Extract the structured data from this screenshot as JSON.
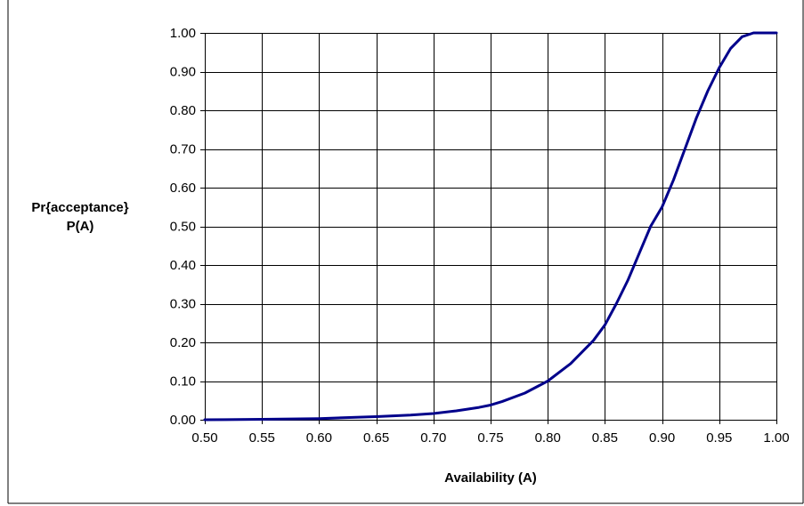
{
  "chart_data": {
    "type": "line",
    "title": "",
    "xlabel": "Availability (A)",
    "ylabel_lines": [
      "Pr{acceptance}",
      "P(A)"
    ],
    "xlim": [
      0.5,
      1.0
    ],
    "ylim": [
      0.0,
      1.0
    ],
    "x_ticks": [
      "0.50",
      "0.55",
      "0.60",
      "0.65",
      "0.70",
      "0.75",
      "0.80",
      "0.85",
      "0.90",
      "0.95",
      "1.00"
    ],
    "y_ticks": [
      "0.00",
      "0.10",
      "0.20",
      "0.30",
      "0.40",
      "0.50",
      "0.60",
      "0.70",
      "0.80",
      "0.90",
      "1.00"
    ],
    "grid": true,
    "legend": "none",
    "series": [
      {
        "color": "#00008B",
        "x": [
          0.5,
          0.55,
          0.6,
          0.65,
          0.68,
          0.7,
          0.72,
          0.74,
          0.75,
          0.76,
          0.78,
          0.8,
          0.82,
          0.84,
          0.85,
          0.86,
          0.87,
          0.88,
          0.89,
          0.9,
          0.91,
          0.92,
          0.93,
          0.94,
          0.95,
          0.96,
          0.97,
          0.98,
          0.99,
          1.0
        ],
        "y": [
          0.0,
          0.001,
          0.003,
          0.008,
          0.012,
          0.016,
          0.023,
          0.032,
          0.038,
          0.047,
          0.069,
          0.1,
          0.145,
          0.205,
          0.245,
          0.3,
          0.36,
          0.43,
          0.5,
          0.55,
          0.62,
          0.7,
          0.78,
          0.85,
          0.91,
          0.96,
          0.99,
          1.0,
          1.0,
          1.0
        ]
      }
    ]
  }
}
